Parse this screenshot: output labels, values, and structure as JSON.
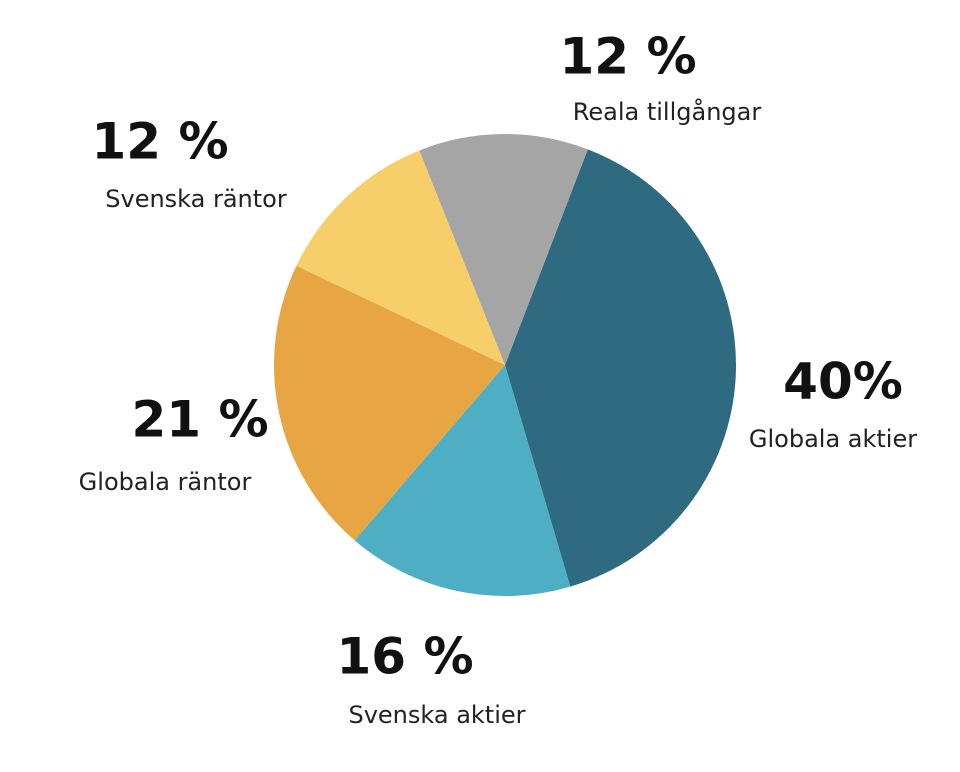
{
  "chart_data": {
    "type": "pie",
    "categories": [
      "Globala aktier",
      "Svenska aktier",
      "Globala räntor",
      "Svenska räntor",
      "Reala tillgångar"
    ],
    "values": [
      40,
      16,
      21,
      12,
      12
    ],
    "value_labels": [
      "40%",
      "16 %",
      "21 %",
      "12 %",
      "12 %"
    ],
    "colors": [
      "#2e6a80",
      "#4eafc4",
      "#e8a543",
      "#f6cf6a",
      "#a5a5a5"
    ]
  }
}
